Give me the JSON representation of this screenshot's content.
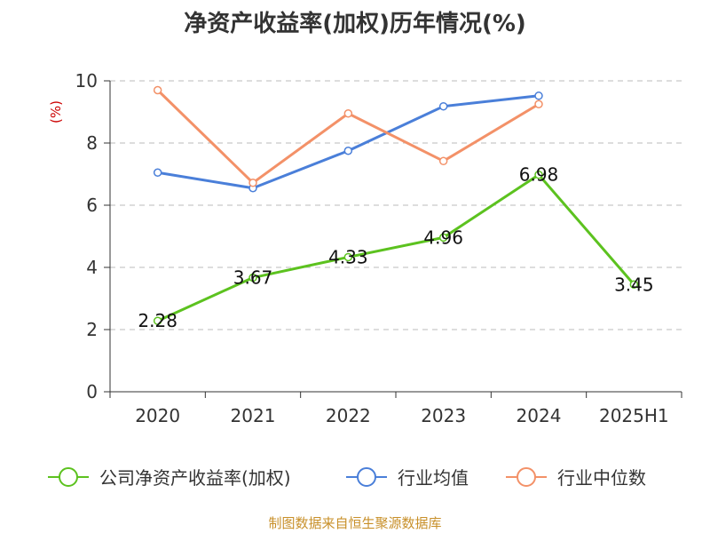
{
  "title": "净资产收益率(加权)历年情况(%)",
  "source": "制图数据来自恒生聚源数据库",
  "chart_data": {
    "type": "line",
    "title": "净资产收益率(加权)历年情况(%)",
    "ylabel": "(%)",
    "categories": [
      "2020",
      "2021",
      "2022",
      "2023",
      "2024",
      "2025H1"
    ],
    "ylim": [
      0,
      10
    ],
    "yticks": [
      0,
      2,
      4,
      6,
      8,
      10
    ],
    "grid": true,
    "legend_position": "bottom",
    "series": [
      {
        "name": "公司净资产收益率(加权)",
        "color": "#5cc21f",
        "values": [
          2.28,
          3.67,
          4.33,
          4.96,
          6.98,
          3.45
        ],
        "labels": [
          "2.28",
          "3.67",
          "4.33",
          "4.96",
          "6.98",
          "3.45"
        ]
      },
      {
        "name": "行业均值",
        "color": "#4a7fd9",
        "values": [
          7.05,
          6.55,
          7.75,
          9.18,
          9.52,
          null
        ]
      },
      {
        "name": "行业中位数",
        "color": "#f39168",
        "values": [
          9.7,
          6.72,
          8.95,
          7.42,
          9.25,
          null
        ]
      }
    ]
  }
}
